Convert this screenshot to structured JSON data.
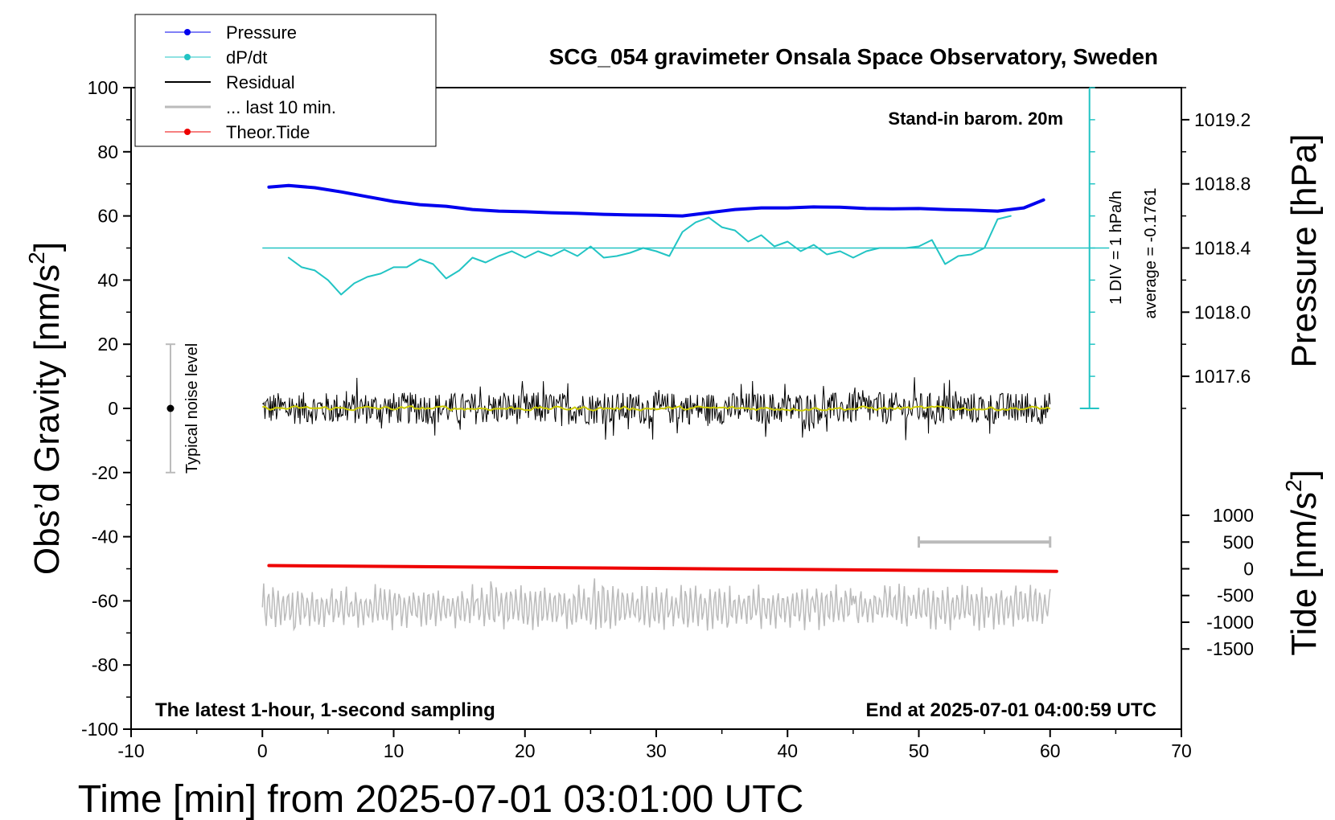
{
  "chart_data": {
    "type": "line",
    "title": "SCG_054 gravimeter Onsala Space Observatory, Sweden",
    "xlabel": "Time [min] from 2025-07-01 03:01:00 UTC",
    "ylabel_main": "Obs’d Gravity [nm/s",
    "ylabel_sup": "2",
    "ylabel_tail": "]",
    "ylabel_pressure": "Pressure [hPa]",
    "ylabel_tide": "Tide [nm/s",
    "ylabel_tide_sup": "2",
    "ylabel_tide_tail": "]",
    "xlim": [
      -10,
      70
    ],
    "ylim": [
      -100,
      100
    ],
    "x_ticks": [
      -10,
      0,
      10,
      20,
      30,
      40,
      50,
      60,
      70
    ],
    "y_ticks": [
      -100,
      -80,
      -60,
      -40,
      -20,
      0,
      20,
      40,
      60,
      80,
      100
    ],
    "pressure_axis": {
      "ticks": [
        "1019.2",
        "1018.8",
        "1018.4",
        "1018.0",
        "1017.6"
      ],
      "tick_values": [
        1019.2,
        1018.8,
        1018.4,
        1018.0,
        1017.6
      ]
    },
    "tide_axis": {
      "ticks": [
        "1000",
        "500",
        "0",
        "-500",
        "-1000",
        "-1500"
      ],
      "tick_values": [
        1000,
        500,
        0,
        -500,
        -1000,
        -1500
      ]
    },
    "annotations": {
      "barometer": "Stand-in barom. 20m",
      "div_label": "1 DIV = 1 hPa/h",
      "average_label": "average = -0.1761",
      "noise_label": "Typical noise level",
      "bottom_left": "The latest 1-hour, 1-second sampling",
      "bottom_right": "End at 2025-07-01 04:00:59 UTC"
    },
    "legend": [
      {
        "name": "Pressure",
        "color": "#0000ee",
        "marker": true
      },
      {
        "name": "dP/dt",
        "color": "#22c4c4",
        "marker": true
      },
      {
        "name": "Residual",
        "color": "#000000",
        "marker": false
      },
      {
        "name": "... last 10 min.",
        "color": "#bbbbbb",
        "marker": false
      },
      {
        "name": "Theor.Tide",
        "color": "#ee0000",
        "marker": true
      }
    ],
    "series": [
      {
        "name": "Pressure",
        "color": "#0000ee",
        "x": [
          0.5,
          2,
          4,
          6,
          8,
          10,
          12,
          14,
          16,
          18,
          20,
          22,
          24,
          26,
          28,
          30,
          32,
          34,
          36,
          38,
          40,
          42,
          44,
          46,
          48,
          50,
          52,
          54,
          56,
          58,
          59.5
        ],
        "y": [
          69,
          69.5,
          68.8,
          67.5,
          66,
          64.5,
          63.5,
          63,
          62,
          61.5,
          61.3,
          61,
          60.8,
          60.5,
          60.3,
          60.2,
          60.0,
          61,
          62,
          62.5,
          62.5,
          62.8,
          62.7,
          62.3,
          62.2,
          62.3,
          62.0,
          61.8,
          61.5,
          62.5,
          65
        ]
      },
      {
        "name": "dP/dt",
        "color": "#22c4c4",
        "x": [
          2,
          3,
          4,
          5,
          6,
          7,
          8,
          9,
          10,
          11,
          12,
          13,
          14,
          15,
          16,
          17,
          18,
          19,
          20,
          21,
          22,
          23,
          24,
          25,
          26,
          27,
          28,
          29,
          30,
          31,
          32,
          33,
          34,
          35,
          36,
          37,
          38,
          39,
          40,
          41,
          42,
          43,
          44,
          45,
          46,
          47,
          48,
          49,
          50,
          51,
          52,
          53,
          54,
          55,
          56,
          57
        ],
        "y": [
          47,
          44,
          43,
          40,
          35.5,
          39,
          41,
          42,
          44,
          44,
          46.5,
          45,
          40.5,
          43,
          47,
          45.5,
          47.5,
          49,
          47,
          49,
          47.5,
          49.5,
          47.5,
          50.5,
          47,
          47.5,
          48.5,
          50,
          49,
          47.5,
          55,
          58,
          59.5,
          56.5,
          55.5,
          52,
          54,
          50.5,
          52,
          49,
          51,
          48,
          49,
          47,
          49,
          50,
          50,
          50,
          50.5,
          52.5,
          45,
          47.5,
          48,
          50,
          59,
          60
        ]
      },
      {
        "name": "Theor.Tide",
        "color": "#ee0000",
        "x": [
          0.5,
          60.5
        ],
        "y": [
          -49,
          -50.8
        ]
      }
    ],
    "residual_range": {
      "x_start": 0,
      "x_end": 60,
      "typical_amplitude": 5
    },
    "noise_bar": {
      "x": -7,
      "low": -20,
      "high": 20
    },
    "pressure_reference": {
      "x_start": 63,
      "x_end": 64,
      "y_bottom": 0,
      "y_top": 100,
      "div_count": 10
    },
    "dpdt_zero_line": 50,
    "scale_bar_10min": {
      "x_start": 50,
      "x_end": 60,
      "tide_value": 500
    }
  }
}
